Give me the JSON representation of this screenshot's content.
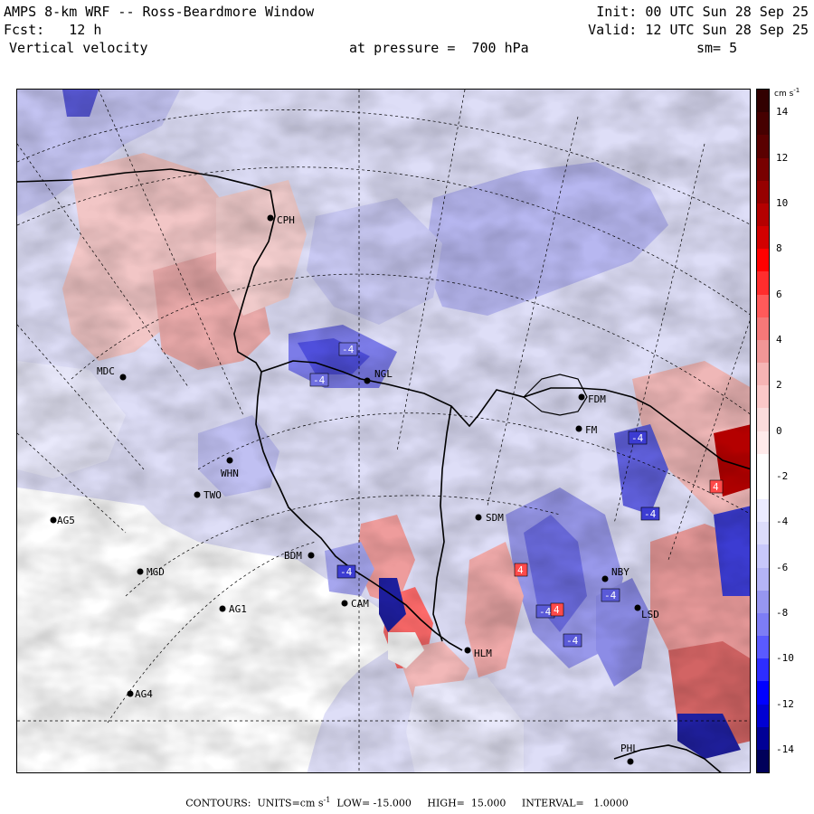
{
  "header": {
    "title": "AMPS 8-km WRF -- Ross-Beardmore Window",
    "forecast": "Fcst:   12 h",
    "field": "Vertical velocity",
    "init": "Init: 00 UTC Sun 28 Sep 25",
    "valid": "Valid: 12 UTC Sun 28 Sep 25",
    "pressure_level": "at pressure =  700 hPa",
    "smoothing": "sm= 5"
  },
  "stations": [
    {
      "id": "CPH",
      "label": "CPH"
    },
    {
      "id": "MDC",
      "label": "MDC"
    },
    {
      "id": "NGL",
      "label": "NGL"
    },
    {
      "id": "FDM",
      "label": "FDM"
    },
    {
      "id": "FM",
      "label": "FM"
    },
    {
      "id": "WHN",
      "label": "WHN"
    },
    {
      "id": "TWO",
      "label": "TWO"
    },
    {
      "id": "AG5",
      "label": "AG5"
    },
    {
      "id": "SDM",
      "label": "SDM"
    },
    {
      "id": "BDM",
      "label": "BDM"
    },
    {
      "id": "MGD",
      "label": "MGD"
    },
    {
      "id": "CAM",
      "label": "CAM"
    },
    {
      "id": "AG1",
      "label": "AG1"
    },
    {
      "id": "NBY",
      "label": "NBY"
    },
    {
      "id": "LSD",
      "label": "LSD"
    },
    {
      "id": "HLM",
      "label": "HLM"
    },
    {
      "id": "AG4",
      "label": "AG4"
    },
    {
      "id": "PHL",
      "label": "PHL"
    }
  ],
  "contour_labels": [
    "-4",
    "-4",
    "-4",
    "4",
    "-4",
    "-4",
    "-4",
    "-4",
    "4",
    "4",
    "-4"
  ],
  "colorbar": {
    "units": "cm s",
    "units_exp": "-1",
    "ticks": [
      "14",
      "12",
      "10",
      "8",
      "6",
      "4",
      "2",
      "0",
      "-2",
      "-4",
      "-6",
      "-8",
      "-10",
      "-12",
      "-14"
    ],
    "min": -15,
    "max": 15,
    "colors": [
      "#00005a",
      "#000096",
      "#0000d2",
      "#0000ff",
      "#2d2dff",
      "#5a5aff",
      "#7d7df5",
      "#9696f0",
      "#b4b4f5",
      "#c8c8fa",
      "#dcdcfa",
      "#ebebff",
      "#ffffff",
      "#ffffff",
      "#ffebeb",
      "#fadcdc",
      "#fac8c8",
      "#f5b4b4",
      "#f09696",
      "#f57878",
      "#ff5a5a",
      "#ff2d2d",
      "#ff0000",
      "#d20000",
      "#b40000",
      "#960000",
      "#780000",
      "#5a0000",
      "#460000",
      "#320000"
    ]
  },
  "footer": {
    "prefix": "CONTOURS:  UNITS=cm s",
    "exp": "-1",
    "low": "  LOW= -15.000",
    "high": "     HIGH=  15.000",
    "interval": "     INTERVAL=   1.0000"
  }
}
